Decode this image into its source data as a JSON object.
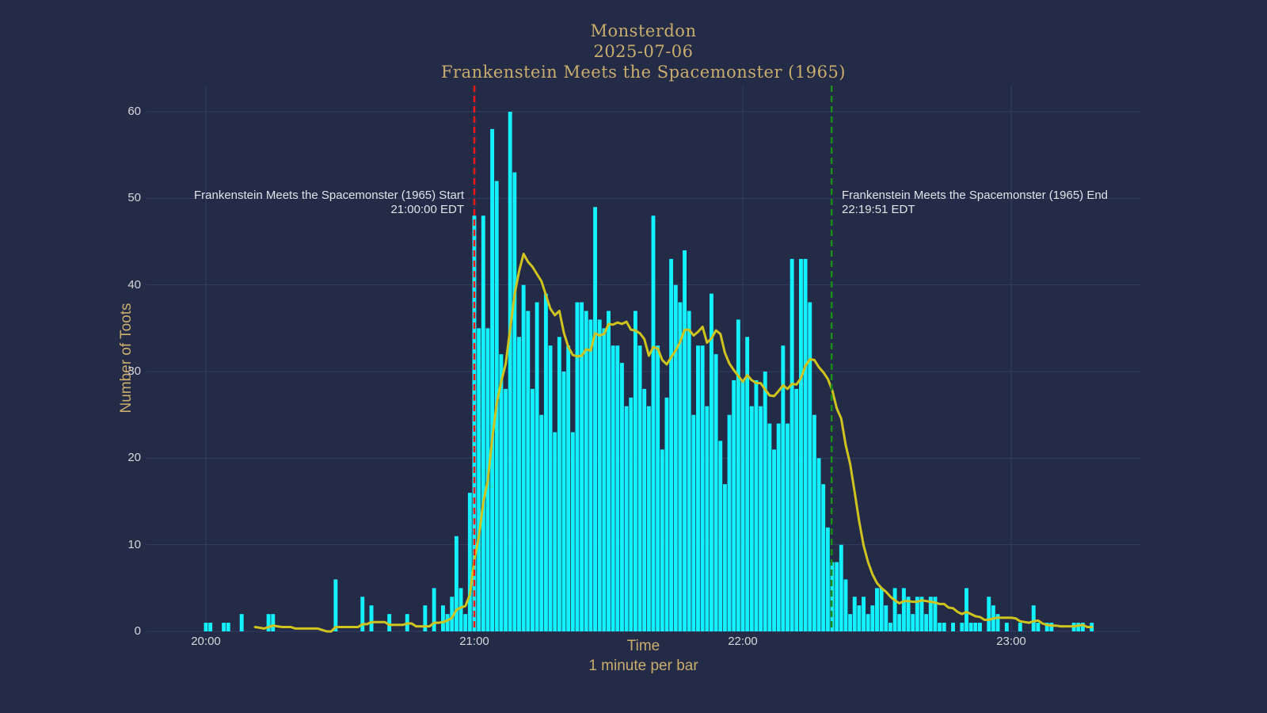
{
  "title": {
    "line1": "Monsterdon",
    "line2": "2025-07-06",
    "line3": "Frankenstein Meets the Spacemonster (1965)"
  },
  "annotations": {
    "start": {
      "line1": "Frankenstein Meets the Spacemonster (1965) Start",
      "line2": "21:00:00 EDT"
    },
    "end": {
      "line1": "Frankenstein Meets the Spacemonster (1965) End",
      "line2": "22:19:51 EDT"
    }
  },
  "axes": {
    "x_title": "Time",
    "x_subtitle": "1 minute per bar",
    "y_title": "Number of Toots"
  },
  "colors": {
    "background": "#242b47",
    "gridline": "#353d63",
    "bar": "#12f1fd",
    "smoothed_line": "#cfc31d",
    "start_marker": "#ff1414",
    "end_marker": "#1a8c1a",
    "title_text": "#c9ad6e",
    "tick_text": "#d6d6dc",
    "annotation_text": "#e0e3ea"
  },
  "chart_data": {
    "type": "bar",
    "title": "Monsterdon 2025-07-06 Frankenstein Meets the Spacemonster (1965)",
    "xlabel": "Time",
    "xlabel_note": "1 minute per bar",
    "ylabel": "Number of Toots",
    "x_start_time": "20:00",
    "minutes_per_bar": 1,
    "x_ticks": [
      "20:00",
      "21:00",
      "22:00",
      "23:00"
    ],
    "y_ticks": [
      0,
      10,
      20,
      30,
      40,
      50,
      60
    ],
    "ylim": [
      0,
      63
    ],
    "grid": true,
    "values": [
      1,
      1,
      0,
      0,
      1,
      1,
      0,
      0,
      2,
      0,
      0,
      0,
      0,
      0,
      2,
      2,
      0,
      0,
      0,
      0,
      0,
      0,
      0,
      0,
      0,
      0,
      0,
      0,
      0,
      6,
      0,
      0,
      0,
      0,
      0,
      4,
      0,
      3,
      0,
      0,
      0,
      2,
      0,
      0,
      0,
      2,
      0,
      0,
      0,
      3,
      0,
      5,
      0,
      3,
      2,
      4,
      11,
      5,
      2,
      16,
      48,
      35,
      48,
      35,
      58,
      52,
      32,
      28,
      60,
      53,
      34,
      40,
      37,
      28,
      38,
      25,
      39,
      33,
      23,
      34,
      30,
      33,
      23,
      38,
      38,
      37,
      36,
      49,
      36,
      35,
      37,
      33,
      33,
      31,
      26,
      27,
      37,
      33,
      28,
      26,
      48,
      33,
      21,
      27,
      43,
      40,
      38,
      44,
      37,
      25,
      33,
      33,
      26,
      39,
      32,
      22,
      17,
      25,
      29,
      36,
      29,
      34,
      26,
      29,
      26,
      30,
      24,
      21,
      24,
      33,
      24,
      43,
      28,
      43,
      43,
      38,
      25,
      20,
      17,
      12,
      8,
      8,
      10,
      6,
      2,
      4,
      3,
      4,
      2,
      3,
      5,
      5,
      3,
      1,
      5,
      2,
      5,
      4,
      2,
      4,
      4,
      2,
      4,
      4,
      1,
      1,
      0,
      1,
      0,
      1,
      5,
      1,
      1,
      1,
      0,
      4,
      3,
      2,
      0,
      1,
      0,
      0,
      1,
      0,
      0,
      3,
      1,
      0,
      1,
      1,
      0,
      0,
      0,
      0,
      1,
      1,
      1,
      0,
      1
    ],
    "smoothed_line": {
      "window": 12,
      "color": "#cfc31d"
    },
    "markers": [
      {
        "name": "start",
        "time": "21:00:00",
        "tz": "EDT",
        "color": "#ff1414"
      },
      {
        "name": "end",
        "time": "22:19:51",
        "tz": "EDT",
        "color": "#1a8c1a"
      }
    ]
  }
}
